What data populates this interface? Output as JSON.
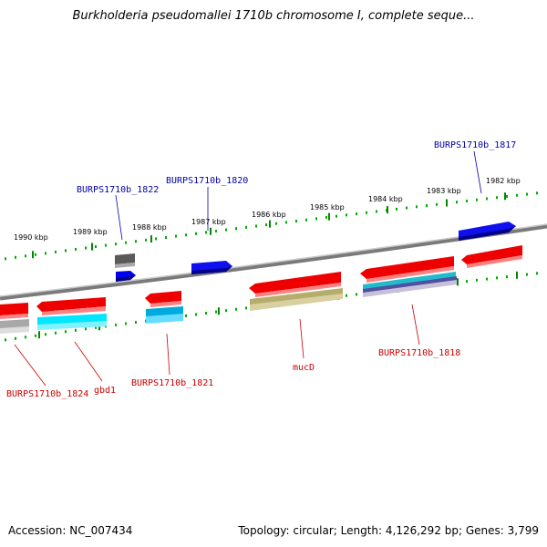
{
  "header": {
    "title": "Burkholderia pseudomallei 1710b chromosome I, complete seque..."
  },
  "footer": {
    "accession": "Accession: NC_007434",
    "summary": "Topology: circular; Length: 4,126,292 bp; Genes: 3,799"
  },
  "scale": {
    "ticks": [
      "1990 kbp",
      "1989 kbp",
      "1988 kbp",
      "1987 kbp",
      "1986 kbp",
      "1985 kbp",
      "1984 kbp",
      "1983 kbp",
      "1982 kbp"
    ]
  },
  "labels": {
    "top": [
      "BURPS1710b_1822",
      "BURPS1710b_1820",
      "BURPS1710b_1817"
    ],
    "bottom": [
      "BURPS1710b_1824",
      "gbd1",
      "BURPS1710b_1821",
      "mucD",
      "BURPS1710b_1818"
    ]
  },
  "colors": {
    "backbone": "#808080",
    "cds_plus": "#0000ee",
    "cds_minus": "#ee0000",
    "rna_cyan": "#00ccee",
    "olive": "#b8b070",
    "grey": "#b0b0b0",
    "tick_green": "#00aa00"
  }
}
